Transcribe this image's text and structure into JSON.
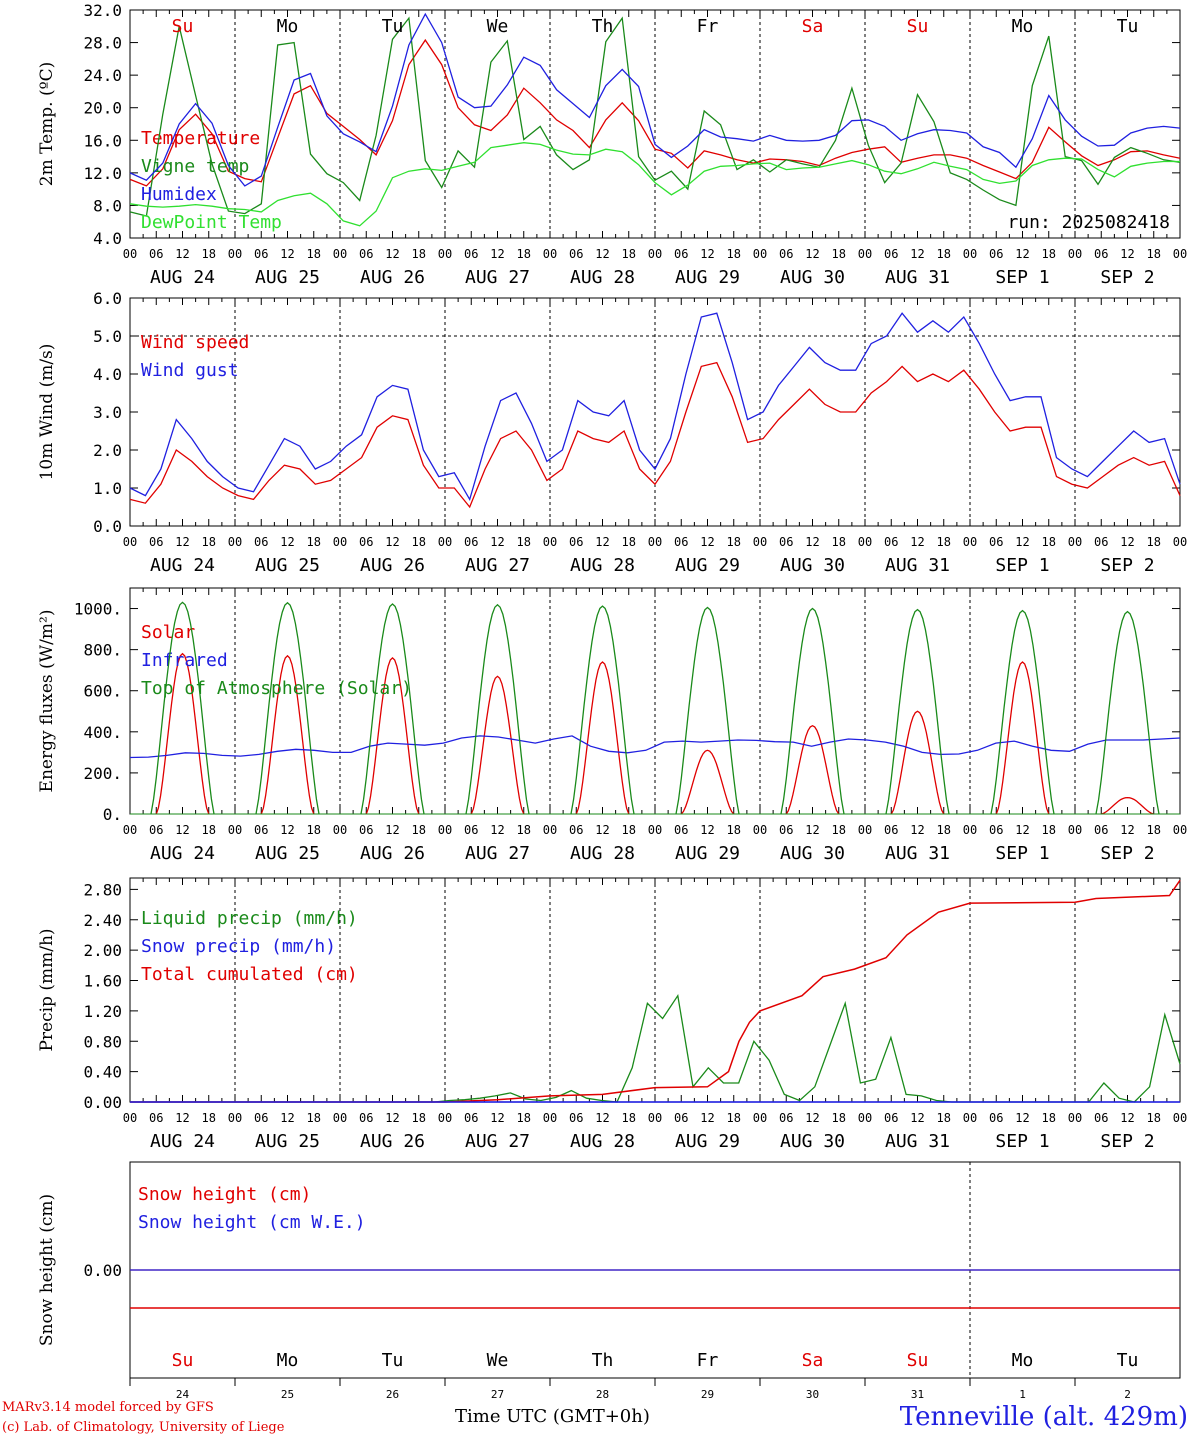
{
  "chart_data": {
    "type": "line",
    "run_label": "run: 2025082418",
    "x_axis": {
      "hour_ticks": [
        "00",
        "06",
        "12",
        "18"
      ],
      "day_labels": [
        "AUG 24",
        "AUG 25",
        "AUG 26",
        "AUG 27",
        "AUG 28",
        "AUG 29",
        "AUG 30",
        "AUG 31",
        "SEP  1",
        "SEP  2"
      ],
      "weekday_labels": [
        "Su",
        "Mo",
        "Tu",
        "We",
        "Th",
        "Fr",
        "Sa",
        "Su",
        "Mo",
        "Tu"
      ],
      "weekday_colors": [
        "#e00000",
        "#000000",
        "#000000",
        "#000000",
        "#000000",
        "#000000",
        "#e00000",
        "#e00000",
        "#000000",
        "#000000"
      ],
      "date_numbers": [
        "24",
        "25",
        "26",
        "27",
        "28",
        "29",
        "30",
        "31",
        "1",
        "2"
      ],
      "xlabel": "Time UTC (GMT+0h)"
    },
    "panels": [
      {
        "ylabel": "2m Temp. (ºC)",
        "ylim": [
          4.0,
          32.0
        ],
        "yticks": [
          "4.0",
          "8.0",
          "12.0",
          "16.0",
          "20.0",
          "24.0",
          "28.0",
          "32.0"
        ],
        "ytick_values": [
          4,
          8,
          12,
          16,
          20,
          24,
          28,
          32
        ],
        "series": [
          {
            "name": "Temperature",
            "color": "#e00000",
            "values": [
              11.2,
              10.4,
              12.5,
              17.3,
              19.2,
              16.8,
              12.2,
              11.3,
              10.9,
              16.3,
              21.7,
              22.7,
              19.3,
              17.7,
              16.1,
              14.2,
              18.4,
              25.3,
              28.3,
              25.3,
              20.0,
              17.9,
              17.2,
              19.1,
              22.4,
              20.6,
              18.5,
              17.2,
              15.1,
              18.5,
              20.6,
              18.4,
              14.9,
              14.4,
              12.6,
              14.7,
              14.2,
              13.6,
              13.2,
              13.7,
              13.6,
              13.4,
              12.9,
              13.8,
              14.5,
              14.9,
              15.2,
              13.3,
              13.8,
              14.2,
              14.2,
              13.8,
              12.9,
              12.1,
              11.3,
              13.3,
              17.6,
              15.8,
              14.1,
              12.9,
              13.6,
              14.6,
              14.7,
              14.2,
              13.8
            ]
          },
          {
            "name": "Vigne temp",
            "color": "#1a8a1a",
            "values": [
              7.2,
              6.7,
              19.2,
              30.0,
              21.5,
              13.1,
              7.3,
              7.0,
              8.2,
              27.7,
              28.0,
              14.3,
              11.9,
              10.8,
              8.6,
              16.6,
              28.4,
              31.0,
              13.5,
              10.2,
              14.7,
              12.7,
              25.6,
              28.2,
              16.1,
              17.7,
              14.2,
              12.4,
              13.6,
              28.1,
              31.0,
              14.0,
              11.1,
              12.2,
              10.0,
              19.6,
              17.9,
              12.4,
              13.6,
              12.1,
              13.6,
              13.1,
              12.7,
              16.0,
              22.4,
              15.4,
              10.8,
              13.2,
              21.6,
              18.3,
              12.0,
              11.2,
              9.9,
              8.7,
              8.0,
              22.7,
              28.8,
              14.0,
              13.5,
              10.6,
              13.9,
              15.1,
              14.4,
              13.6,
              13.3
            ]
          },
          {
            "name": "Humidex",
            "color": "#2020e0",
            "values": [
              12.0,
              11.1,
              13.2,
              18.0,
              20.5,
              18.1,
              12.9,
              10.4,
              11.6,
              17.6,
              23.4,
              24.2,
              19.0,
              16.8,
              15.8,
              14.6,
              20.2,
              27.7,
              31.5,
              28.0,
              21.3,
              20.0,
              20.2,
              22.8,
              26.2,
              25.2,
              22.2,
              20.5,
              18.8,
              22.7,
              24.7,
              22.6,
              15.5,
              13.9,
              15.3,
              17.3,
              16.4,
              16.2,
              15.9,
              16.6,
              16.0,
              15.9,
              16.0,
              16.6,
              18.4,
              18.5,
              17.7,
              16.0,
              16.8,
              17.3,
              17.2,
              16.9,
              15.2,
              14.5,
              12.7,
              16.2,
              21.5,
              18.5,
              16.5,
              15.3,
              15.4,
              16.9,
              17.5,
              17.7,
              17.5
            ]
          },
          {
            "name": "DewPoint Temp",
            "color": "#30e030",
            "values": [
              8.2,
              7.9,
              7.8,
              7.9,
              8.1,
              7.9,
              7.6,
              7.5,
              7.2,
              8.6,
              9.2,
              9.5,
              8.2,
              6.1,
              5.5,
              7.3,
              11.4,
              12.2,
              12.5,
              12.3,
              12.8,
              13.3,
              15.1,
              15.4,
              15.7,
              15.5,
              14.8,
              14.3,
              14.2,
              14.9,
              14.6,
              13.0,
              10.8,
              9.3,
              10.5,
              12.2,
              12.8,
              12.9,
              13.1,
              13.2,
              12.4,
              12.6,
              12.7,
              13.1,
              13.5,
              13.0,
              12.2,
              11.9,
              12.5,
              13.3,
              12.8,
              12.4,
              11.2,
              10.7,
              11.0,
              12.9,
              13.6,
              13.8,
              13.7,
              12.4,
              11.5,
              12.8,
              13.2,
              13.4,
              13.4
            ]
          }
        ]
      },
      {
        "ylabel": "10m Wind (m/s)",
        "ylim": [
          0.0,
          6.0
        ],
        "yticks": [
          "0.0",
          "1.0",
          "2.0",
          "3.0",
          "4.0",
          "5.0",
          "6.0"
        ],
        "ytick_values": [
          0,
          1,
          2,
          3,
          4,
          5,
          6
        ],
        "ref_line": 5.0,
        "series": [
          {
            "name": "Wind speed",
            "color": "#e00000",
            "values": [
              0.7,
              0.6,
              1.1,
              2.0,
              1.7,
              1.3,
              1.0,
              0.8,
              0.7,
              1.2,
              1.6,
              1.5,
              1.1,
              1.2,
              1.5,
              1.8,
              2.6,
              2.9,
              2.8,
              1.6,
              1.0,
              1.0,
              0.5,
              1.5,
              2.3,
              2.5,
              2.0,
              1.2,
              1.5,
              2.5,
              2.3,
              2.2,
              2.5,
              1.5,
              1.1,
              1.7,
              3.0,
              4.2,
              4.3,
              3.4,
              2.2,
              2.3,
              2.8,
              3.2,
              3.6,
              3.2,
              3.0,
              3.0,
              3.5,
              3.8,
              4.2,
              3.8,
              4.0,
              3.8,
              4.1,
              3.6,
              3.0,
              2.5,
              2.6,
              2.6,
              1.3,
              1.1,
              1.0,
              1.3,
              1.6,
              1.8,
              1.6,
              1.7,
              0.8
            ]
          },
          {
            "name": "Wind gust",
            "color": "#2020e0",
            "values": [
              1.0,
              0.8,
              1.5,
              2.8,
              2.3,
              1.7,
              1.3,
              1.0,
              0.9,
              1.6,
              2.3,
              2.1,
              1.5,
              1.7,
              2.1,
              2.4,
              3.4,
              3.7,
              3.6,
              2.0,
              1.3,
              1.4,
              0.7,
              2.1,
              3.3,
              3.5,
              2.7,
              1.7,
              2.0,
              3.3,
              3.0,
              2.9,
              3.3,
              2.0,
              1.5,
              2.3,
              4.0,
              5.5,
              5.6,
              4.3,
              2.8,
              3.0,
              3.7,
              4.2,
              4.7,
              4.3,
              4.1,
              4.1,
              4.8,
              5.0,
              5.6,
              5.1,
              5.4,
              5.1,
              5.5,
              4.8,
              4.0,
              3.3,
              3.4,
              3.4,
              1.8,
              1.5,
              1.3,
              1.7,
              2.1,
              2.5,
              2.2,
              2.3,
              1.1
            ]
          }
        ]
      },
      {
        "ylabel": "Energy fluxes (W/m²)",
        "ylim": [
          0,
          1100
        ],
        "yticks": [
          "0.",
          "200.",
          "400.",
          "600.",
          "800.",
          "1000."
        ],
        "ytick_values": [
          0,
          200,
          400,
          600,
          800,
          1000
        ],
        "series": [
          {
            "name": "Solar",
            "color": "#e00000",
            "day_peaks": [
              780,
              770,
              760,
              670,
              740,
              310,
              430,
              500,
              740,
              80
            ]
          },
          {
            "name": "Infrared",
            "color": "#2020e0",
            "values": [
              275,
              277,
              285,
              298,
              295,
              285,
              282,
              290,
              305,
              315,
              310,
              300,
              300,
              330,
              345,
              340,
              335,
              345,
              370,
              380,
              375,
              360,
              345,
              365,
              380,
              330,
              305,
              298,
              310,
              350,
              355,
              350,
              355,
              360,
              358,
              352,
              350,
              330,
              350,
              365,
              360,
              350,
              330,
              300,
              290,
              292,
              310,
              345,
              355,
              330,
              310,
              305,
              340,
              360,
              360,
              360,
              365,
              370
            ]
          },
          {
            "name": "Top of Atmosphere (Solar)",
            "color": "#1a8a1a",
            "day_peaks": [
              1030,
              1028,
              1022,
              1018,
              1012,
              1005,
              1000,
              995,
              990,
              985
            ]
          }
        ]
      },
      {
        "ylabel": "Precip (mm/h)",
        "ylim": [
          0.0,
          2.95
        ],
        "yticks": [
          "0.00",
          "0.40",
          "0.80",
          "1.20",
          "1.60",
          "2.00",
          "2.40",
          "2.80"
        ],
        "ytick_values": [
          0,
          0.4,
          0.8,
          1.2,
          1.6,
          2.0,
          2.4,
          2.8
        ],
        "series": [
          {
            "name": "Liquid precip (mm/h)",
            "color": "#1a8a1a",
            "values": [
              0,
              0,
              0,
              0,
              0,
              0,
              0,
              0,
              0,
              0,
              0,
              0,
              0,
              0,
              0,
              0,
              0,
              0,
              0,
              0,
              0,
              0.02,
              0.03,
              0.05,
              0.08,
              0.12,
              0.04,
              0.02,
              0.06,
              0.15,
              0.05,
              0.02,
              0.0,
              0.45,
              1.3,
              1.1,
              1.4,
              0.2,
              0.45,
              0.25,
              0.25,
              0.8,
              0.55,
              0.1,
              0.02,
              0.2,
              0.75,
              1.3,
              0.25,
              0.3,
              0.85,
              0.1,
              0.08,
              0.02,
              0,
              0,
              0,
              0,
              0,
              0,
              0,
              0,
              0,
              0,
              0.25,
              0.05,
              0,
              0.2,
              1.15,
              0.5
            ]
          },
          {
            "name": "Snow precip (mm/h)",
            "color": "#2020e0",
            "values": [
              0,
              0
            ]
          },
          {
            "name": "Total cumulated (cm)",
            "color": "#e00000",
            "points": [
              [
                0,
                0
              ],
              [
                3.0,
                0
              ],
              [
                3.5,
                0.03
              ],
              [
                4.0,
                0.08
              ],
              [
                4.5,
                0.1
              ],
              [
                5.0,
                0.19
              ],
              [
                5.5,
                0.2
              ],
              [
                5.7,
                0.4
              ],
              [
                5.8,
                0.8
              ],
              [
                5.9,
                1.05
              ],
              [
                6.0,
                1.2
              ],
              [
                6.4,
                1.4
              ],
              [
                6.6,
                1.65
              ],
              [
                6.9,
                1.75
              ],
              [
                7.2,
                1.9
              ],
              [
                7.4,
                2.2
              ],
              [
                7.7,
                2.5
              ],
              [
                8.0,
                2.62
              ],
              [
                9.0,
                2.63
              ],
              [
                9.2,
                2.68
              ],
              [
                9.9,
                2.72
              ],
              [
                10.0,
                2.92
              ]
            ]
          }
        ]
      },
      {
        "ylabel": "Snow height (cm)",
        "yticks": [
          "0.00"
        ],
        "ytick_values": [
          0
        ],
        "series": [
          {
            "name": "Snow height (cm)",
            "color": "#e00000",
            "values": [
              0,
              0
            ]
          },
          {
            "name": "Snow height (cm W.E.)",
            "color": "#2020e0",
            "values": [
              0,
              0
            ]
          }
        ]
      }
    ]
  },
  "footer": {
    "model_line": "MARv3.14 model forced by GFS",
    "credit_line": "(c) Lab. of Climatology, University of Liege",
    "station": "Tenneville (alt. 429m)"
  }
}
